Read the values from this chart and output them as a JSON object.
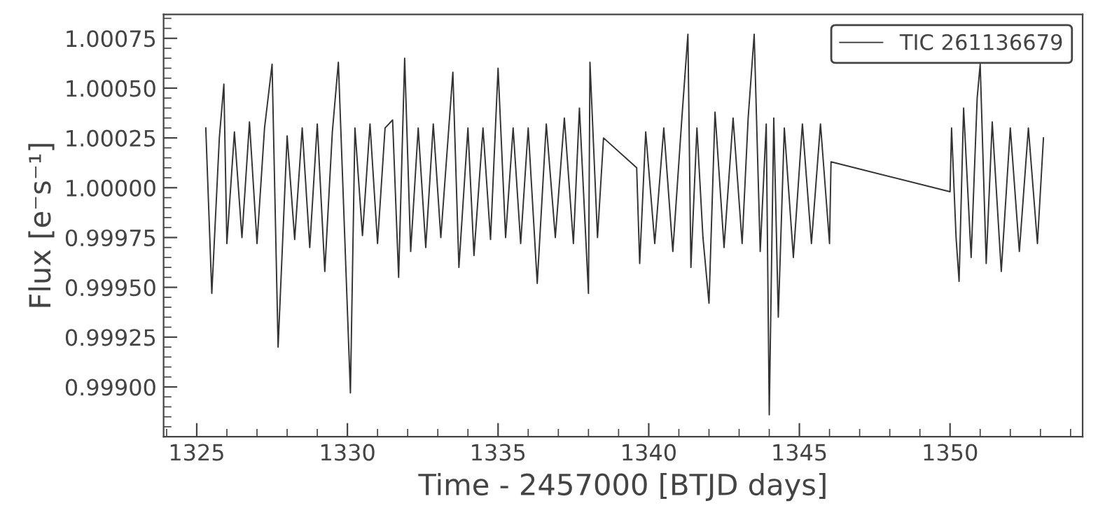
{
  "chart_data": {
    "type": "line",
    "xlabel": "Time - 2457000 [BTJD days]",
    "ylabel": "Flux [e⁻s⁻¹]",
    "xlim": [
      1323.9,
      1354.4
    ],
    "ylim": [
      0.99875,
      1.00087
    ],
    "xticks": [
      1325,
      1330,
      1335,
      1340,
      1345,
      1350
    ],
    "yticks": [
      {
        "value": 0.999,
        "label": "0.99900"
      },
      {
        "value": 0.99925,
        "label": "0.99925"
      },
      {
        "value": 0.9995,
        "label": "0.99950"
      },
      {
        "value": 0.99975,
        "label": "0.99975"
      },
      {
        "value": 1.0,
        "label": "1.00000"
      },
      {
        "value": 1.00025,
        "label": "1.00025"
      },
      {
        "value": 1.0005,
        "label": "1.00050"
      },
      {
        "value": 1.00075,
        "label": "1.00075"
      }
    ],
    "grid": false,
    "legend": "top right",
    "marker": "none",
    "line_style": "solid",
    "series": [
      {
        "name": "TIC 261136679",
        "color": "#333333",
        "x": [
          1325.3,
          1325.5,
          1325.75,
          1325.9,
          1326.0,
          1326.25,
          1326.5,
          1326.75,
          1327.0,
          1327.25,
          1327.5,
          1327.7,
          1328.0,
          1328.25,
          1328.5,
          1328.75,
          1329.0,
          1329.25,
          1329.5,
          1329.7,
          1330.1,
          1330.25,
          1330.5,
          1330.75,
          1331.0,
          1331.25,
          1331.5,
          1331.7,
          1331.9,
          1332.1,
          1332.35,
          1332.6,
          1332.85,
          1333.1,
          1333.5,
          1333.7,
          1334.0,
          1334.2,
          1334.5,
          1334.75,
          1335.0,
          1335.25,
          1335.5,
          1335.75,
          1336.0,
          1336.3,
          1336.6,
          1336.9,
          1337.2,
          1337.5,
          1337.7,
          1338.0,
          1338.05,
          1338.3,
          1338.5,
          1339.6,
          1339.7,
          1339.9,
          1340.2,
          1340.5,
          1340.8,
          1341.1,
          1341.3,
          1341.4,
          1341.6,
          1341.8,
          1342.0,
          1342.2,
          1342.5,
          1342.8,
          1343.1,
          1343.3,
          1343.5,
          1343.7,
          1343.9,
          1344.0,
          1344.15,
          1344.3,
          1344.5,
          1344.8,
          1345.1,
          1345.4,
          1345.7,
          1346.0,
          1346.05,
          1350.0,
          1350.05,
          1350.2,
          1350.3,
          1350.45,
          1350.7,
          1350.9,
          1351.0,
          1351.2,
          1351.4,
          1351.7,
          1352.0,
          1352.3,
          1352.6,
          1352.9,
          1353.1
        ],
        "values": [
          1.0003,
          0.99947,
          1.00025,
          1.00052,
          0.99972,
          1.00028,
          0.99975,
          1.00033,
          0.99972,
          1.0003,
          1.00062,
          0.9992,
          1.00026,
          0.99974,
          1.0003,
          0.9997,
          1.00032,
          0.99958,
          1.00028,
          1.00063,
          0.99897,
          1.0003,
          0.99976,
          1.00032,
          0.99972,
          1.0003,
          1.00034,
          0.99955,
          1.00065,
          0.99968,
          1.0003,
          0.9997,
          1.00032,
          0.99975,
          1.00058,
          0.9996,
          1.0003,
          0.99966,
          1.0003,
          0.99974,
          1.0006,
          0.99975,
          1.0003,
          0.99972,
          1.0003,
          0.99952,
          1.00032,
          0.99975,
          1.00035,
          0.99972,
          1.0004,
          0.99947,
          1.00063,
          0.99975,
          1.00025,
          1.0001,
          0.99962,
          1.00028,
          0.99972,
          1.0003,
          0.99968,
          1.00035,
          1.00077,
          0.9996,
          1.0003,
          0.99975,
          0.99942,
          1.00038,
          0.9997,
          1.00035,
          0.99972,
          1.00035,
          1.00077,
          0.99968,
          1.00032,
          0.99886,
          1.00035,
          0.99935,
          1.0003,
          0.99965,
          1.00032,
          0.99972,
          1.00032,
          0.99972,
          1.00013,
          0.99998,
          1.0003,
          0.99975,
          0.99953,
          1.0004,
          0.99965,
          1.00045,
          1.00062,
          0.99962,
          1.00033,
          0.99958,
          1.0003,
          0.99968,
          1.0003,
          0.99972,
          1.00025
        ]
      }
    ]
  }
}
